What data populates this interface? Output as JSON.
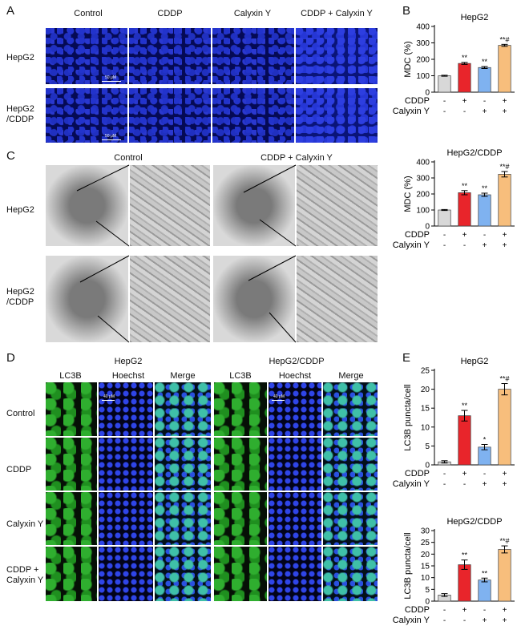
{
  "panels": {
    "A": {
      "letter": "A",
      "cols": [
        "Control",
        "CDDP",
        "Calyxin Y",
        "CDDP + Calyxin Y"
      ],
      "rows": [
        [
          "HepG2"
        ],
        [
          "HepG2",
          "/CDDP"
        ]
      ],
      "scale": "50 μM"
    },
    "C": {
      "letter": "C",
      "cols": [
        "Control",
        "CDDP + Calyxin Y"
      ],
      "rows": [
        [
          "HepG2"
        ],
        [
          "HepG2",
          "/CDDP"
        ]
      ]
    },
    "D": {
      "letter": "D",
      "groups": [
        "HepG2",
        "HepG2/CDDP"
      ],
      "channels": [
        "LC3B",
        "Hoechst",
        "Merge"
      ],
      "rows": [
        [
          "Control"
        ],
        [
          "CDDP"
        ],
        [
          "Calyxin Y"
        ],
        [
          "CDDP +",
          "Calyxin Y"
        ]
      ],
      "scale": "40 μM"
    },
    "B": {
      "letter": "B"
    },
    "E": {
      "letter": "E"
    }
  },
  "treatment_labels": [
    "CDDP",
    "Calyxin Y"
  ],
  "colors": {
    "bars": [
      "#d8d8d8",
      "#e8252b",
      "#7fb2f0",
      "#f7be7c"
    ]
  },
  "chart_data": [
    {
      "id": "B1",
      "type": "bar",
      "title": "HepG2",
      "ylabel": "MDC (%)",
      "ylim": [
        0,
        400
      ],
      "yticks": [
        0,
        100,
        200,
        300,
        400
      ],
      "values": [
        100,
        175,
        150,
        285
      ],
      "errors": [
        3,
        6,
        6,
        6
      ],
      "sig": [
        "",
        "**",
        "**",
        "**#"
      ],
      "cddp": [
        "-",
        "+",
        "-",
        "+"
      ],
      "calyxin": [
        "-",
        "-",
        "+",
        "+"
      ]
    },
    {
      "id": "B2",
      "type": "bar",
      "title": "HepG2/CDDP",
      "ylabel": "MDC (%)",
      "ylim": [
        0,
        400
      ],
      "yticks": [
        0,
        100,
        200,
        300,
        400
      ],
      "values": [
        100,
        208,
        195,
        323
      ],
      "errors": [
        3,
        13,
        10,
        17
      ],
      "sig": [
        "",
        "**",
        "**",
        "**#"
      ],
      "cddp": [
        "-",
        "+",
        "-",
        "+"
      ],
      "calyxin": [
        "-",
        "-",
        "+",
        "+"
      ]
    },
    {
      "id": "E1",
      "type": "bar",
      "title": "HepG2",
      "ylabel": "LC3B puncta/cell",
      "ylim": [
        0,
        25
      ],
      "yticks": [
        0,
        5,
        10,
        15,
        20,
        25
      ],
      "values": [
        0.8,
        13,
        4.7,
        20
      ],
      "errors": [
        0.3,
        1.4,
        0.7,
        1.5
      ],
      "sig": [
        "",
        "**",
        "*",
        "**#"
      ],
      "cddp": [
        "-",
        "+",
        "-",
        "+"
      ],
      "calyxin": [
        "-",
        "-",
        "+",
        "+"
      ]
    },
    {
      "id": "E2",
      "type": "bar",
      "title": "HepG2/CDDP",
      "ylabel": "LC3B puncta/cell",
      "ylim": [
        0,
        30
      ],
      "yticks": [
        0,
        5,
        10,
        15,
        20,
        25,
        30
      ],
      "values": [
        2.6,
        15.5,
        9,
        22
      ],
      "errors": [
        0.6,
        2,
        0.8,
        1.5
      ],
      "sig": [
        "",
        "**",
        "**",
        "**#"
      ],
      "cddp": [
        "-",
        "+",
        "-",
        "+"
      ],
      "calyxin": [
        "-",
        "-",
        "+",
        "+"
      ]
    }
  ]
}
